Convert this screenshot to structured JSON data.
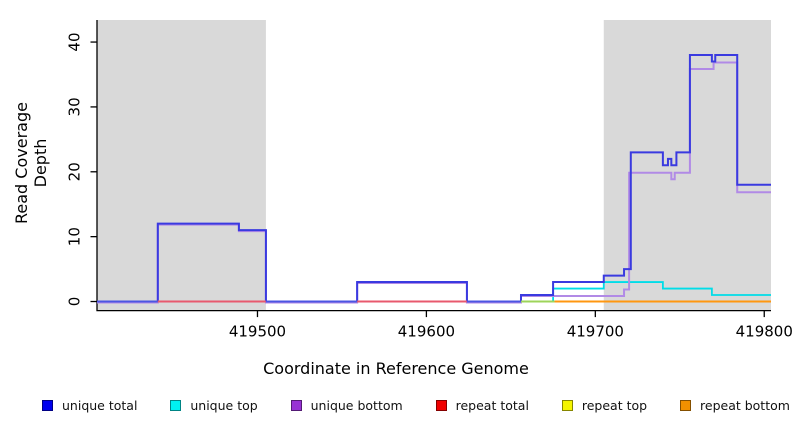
{
  "chart_data": {
    "type": "line",
    "subtype": "step-coverage",
    "title": "",
    "xlabel": "Coordinate in Reference Genome",
    "ylabel": "Read Coverage Depth",
    "xlim": [
      419405,
      419804
    ],
    "ylim": [
      -1.4,
      43.4
    ],
    "grid": false,
    "x_ticks": [
      {
        "value": 419500,
        "label": "419500"
      },
      {
        "value": 419600,
        "label": "419600"
      },
      {
        "value": 419700,
        "label": "419700"
      },
      {
        "value": 419800,
        "label": "419800"
      }
    ],
    "y_ticks": [
      {
        "value": 0,
        "label": "0"
      },
      {
        "value": 10,
        "label": "10"
      },
      {
        "value": 20,
        "label": "20"
      },
      {
        "value": 30,
        "label": "30"
      },
      {
        "value": 40,
        "label": "40"
      }
    ],
    "shade_color": "#d9d9d9",
    "shaded_regions": [
      {
        "from": 419405,
        "to": 419505
      },
      {
        "from": 419705,
        "to": 419804
      }
    ],
    "series": [
      {
        "name": "unique total",
        "color": "#3a3ae0",
        "width": 2,
        "points": [
          [
            419405,
            0
          ],
          [
            419441,
            12
          ],
          [
            419489,
            11
          ],
          [
            419505,
            0
          ],
          [
            419559,
            3
          ],
          [
            419624,
            0
          ],
          [
            419656,
            1
          ],
          [
            419675,
            3
          ],
          [
            419705,
            4
          ],
          [
            419717,
            5
          ],
          [
            419721,
            23
          ],
          [
            419740,
            21
          ],
          [
            419743,
            22
          ],
          [
            419745,
            21
          ],
          [
            419748,
            23
          ],
          [
            419756,
            38
          ],
          [
            419769,
            37
          ],
          [
            419771,
            38
          ],
          [
            419784,
            18
          ]
        ]
      },
      {
        "name": "unique top",
        "color": "#00dde8",
        "width": 1.8,
        "points": [
          [
            419405,
            0
          ],
          [
            419675,
            2
          ],
          [
            419705,
            3
          ],
          [
            419740,
            2
          ],
          [
            419769,
            1
          ]
        ]
      },
      {
        "name": "unique bottom",
        "color": "#b18ae6",
        "width": 2,
        "points": [
          [
            419405,
            0
          ],
          [
            419441,
            12
          ],
          [
            419489,
            11
          ],
          [
            419505,
            0
          ],
          [
            419559,
            3
          ],
          [
            419624,
            0
          ],
          [
            419656,
            1
          ],
          [
            419705,
            1
          ],
          [
            419717,
            2
          ],
          [
            419720,
            20
          ],
          [
            419745,
            19
          ],
          [
            419747,
            20
          ],
          [
            419756,
            36
          ],
          [
            419770,
            37
          ],
          [
            419784,
            17
          ]
        ]
      },
      {
        "name": "repeat total",
        "color": "#e8596e",
        "width": 1.6,
        "points": [
          [
            419405,
            0
          ]
        ]
      },
      {
        "name": "repeat top",
        "color": "#d8dc3e",
        "width": 1.6,
        "points": [
          [
            419405,
            0
          ]
        ]
      },
      {
        "name": "repeat bottom",
        "color": "#ff9710",
        "width": 1.8,
        "points": [
          [
            419405,
            0
          ]
        ]
      }
    ],
    "baseline_segments": [
      {
        "from": 419405,
        "to": 419441,
        "color": "#4c55e2"
      },
      {
        "from": 419441,
        "to": 419505,
        "color": "#e8596e"
      },
      {
        "from": 419505,
        "to": 419559,
        "color": "#4c55e2"
      },
      {
        "from": 419559,
        "to": 419624,
        "color": "#e8596e"
      },
      {
        "from": 419624,
        "to": 419656,
        "color": "#4c55e2"
      },
      {
        "from": 419656,
        "to": 419676,
        "color": "#9ed45a"
      },
      {
        "from": 419676,
        "to": 419804,
        "color": "#ff9710"
      }
    ]
  },
  "legend": {
    "items": [
      {
        "label": "unique total",
        "color": "#0000ee"
      },
      {
        "label": "unique top",
        "color": "#00f0f0"
      },
      {
        "label": "unique bottom",
        "color": "#9832d4"
      },
      {
        "label": "repeat total",
        "color": "#f00000"
      },
      {
        "label": "repeat top",
        "color": "#f5f500"
      },
      {
        "label": "repeat bottom",
        "color": "#f09000"
      }
    ]
  }
}
